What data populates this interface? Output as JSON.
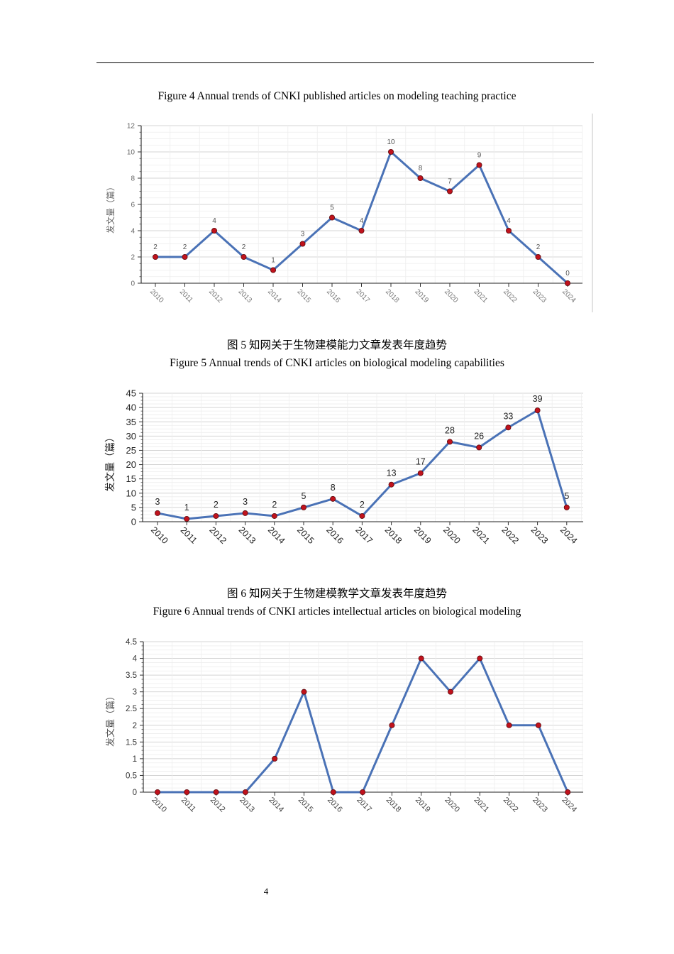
{
  "page": {
    "number": "4"
  },
  "figures": [
    {
      "caption_en": "Figure 4 Annual trends of CNKI published articles on modeling teaching practice"
    },
    {
      "caption_cn": "图  5 知网关于生物建模能力文章发表年度趋势",
      "caption_en": "Figure 5 Annual trends of CNKI articles on biological modeling capabilities"
    },
    {
      "caption_cn": "图  6 知网关于生物建模教学文章发表年度趋势",
      "caption_en": "Figure 6 Annual trends of CNKI articles intellectual articles on biological modeling"
    }
  ],
  "chart_data": [
    {
      "type": "line",
      "title": "Figure 4 Annual trends of CNKI published articles on modeling teaching practice",
      "xlabel": "",
      "ylabel": "发文量（篇）",
      "categories": [
        "2010",
        "2011",
        "2012",
        "2013",
        "2014",
        "2015",
        "2016",
        "2017",
        "2018",
        "2019",
        "2020",
        "2021",
        "2022",
        "2023",
        "2024"
      ],
      "series": [
        {
          "name": "发文量",
          "values": [
            2,
            2,
            4,
            2,
            1,
            3,
            5,
            4,
            10,
            8,
            7,
            9,
            4,
            2,
            0
          ]
        }
      ],
      "ylim": [
        0,
        12
      ],
      "yticks": [
        0,
        2,
        4,
        6,
        8,
        10,
        12
      ],
      "ytick_labels": [
        "0",
        "2",
        "4",
        "6",
        "8",
        "10",
        "12"
      ],
      "data_labels": true,
      "grid": true,
      "line_color": "#4a72b6",
      "marker_color": "#c0121c"
    },
    {
      "type": "line",
      "title": "Figure 5 Annual trends of CNKI articles on biological modeling capabilities",
      "xlabel": "",
      "ylabel": "发文量（篇）",
      "categories": [
        "2010",
        "2011",
        "2012",
        "2013",
        "2014",
        "2015",
        "2016",
        "2017",
        "2018",
        "2019",
        "2020",
        "2021",
        "2022",
        "2023",
        "2024"
      ],
      "series": [
        {
          "name": "发文量",
          "values": [
            3,
            1,
            2,
            3,
            2,
            5,
            8,
            2,
            13,
            17,
            28,
            26,
            33,
            39,
            5
          ]
        }
      ],
      "ylim": [
        0,
        45
      ],
      "yticks": [
        0,
        5,
        10,
        15,
        20,
        25,
        30,
        35,
        40,
        45
      ],
      "ytick_labels": [
        "0",
        "5",
        "10",
        "15",
        "20",
        "25",
        "30",
        "35",
        "40",
        "45"
      ],
      "data_labels": true,
      "grid": true,
      "line_color": "#4a72b6",
      "marker_color": "#c0121c"
    },
    {
      "type": "line",
      "title": "Figure 6 Annual trends of CNKI articles intellectual articles on biological modeling",
      "xlabel": "",
      "ylabel": "发文量（篇）",
      "categories": [
        "2010",
        "2011",
        "2012",
        "2013",
        "2014",
        "2015",
        "2016",
        "2017",
        "2018",
        "2019",
        "2020",
        "2021",
        "2022",
        "2023",
        "2024"
      ],
      "series": [
        {
          "name": "发文量",
          "values": [
            0,
            0,
            0,
            0,
            1,
            3,
            0,
            0,
            2,
            4,
            3,
            4,
            2,
            2,
            0
          ]
        }
      ],
      "ylim": [
        0,
        4.5
      ],
      "yticks": [
        0,
        0.5,
        1,
        1.5,
        2,
        2.5,
        3,
        3.5,
        4,
        4.5
      ],
      "ytick_labels": [
        "0",
        "0.5",
        "1",
        "1.5",
        "2",
        "2.5",
        "3",
        "3.5",
        "4",
        "4.5"
      ],
      "data_labels": false,
      "grid": true,
      "line_color": "#4a72b6",
      "marker_color": "#c0121c"
    }
  ]
}
